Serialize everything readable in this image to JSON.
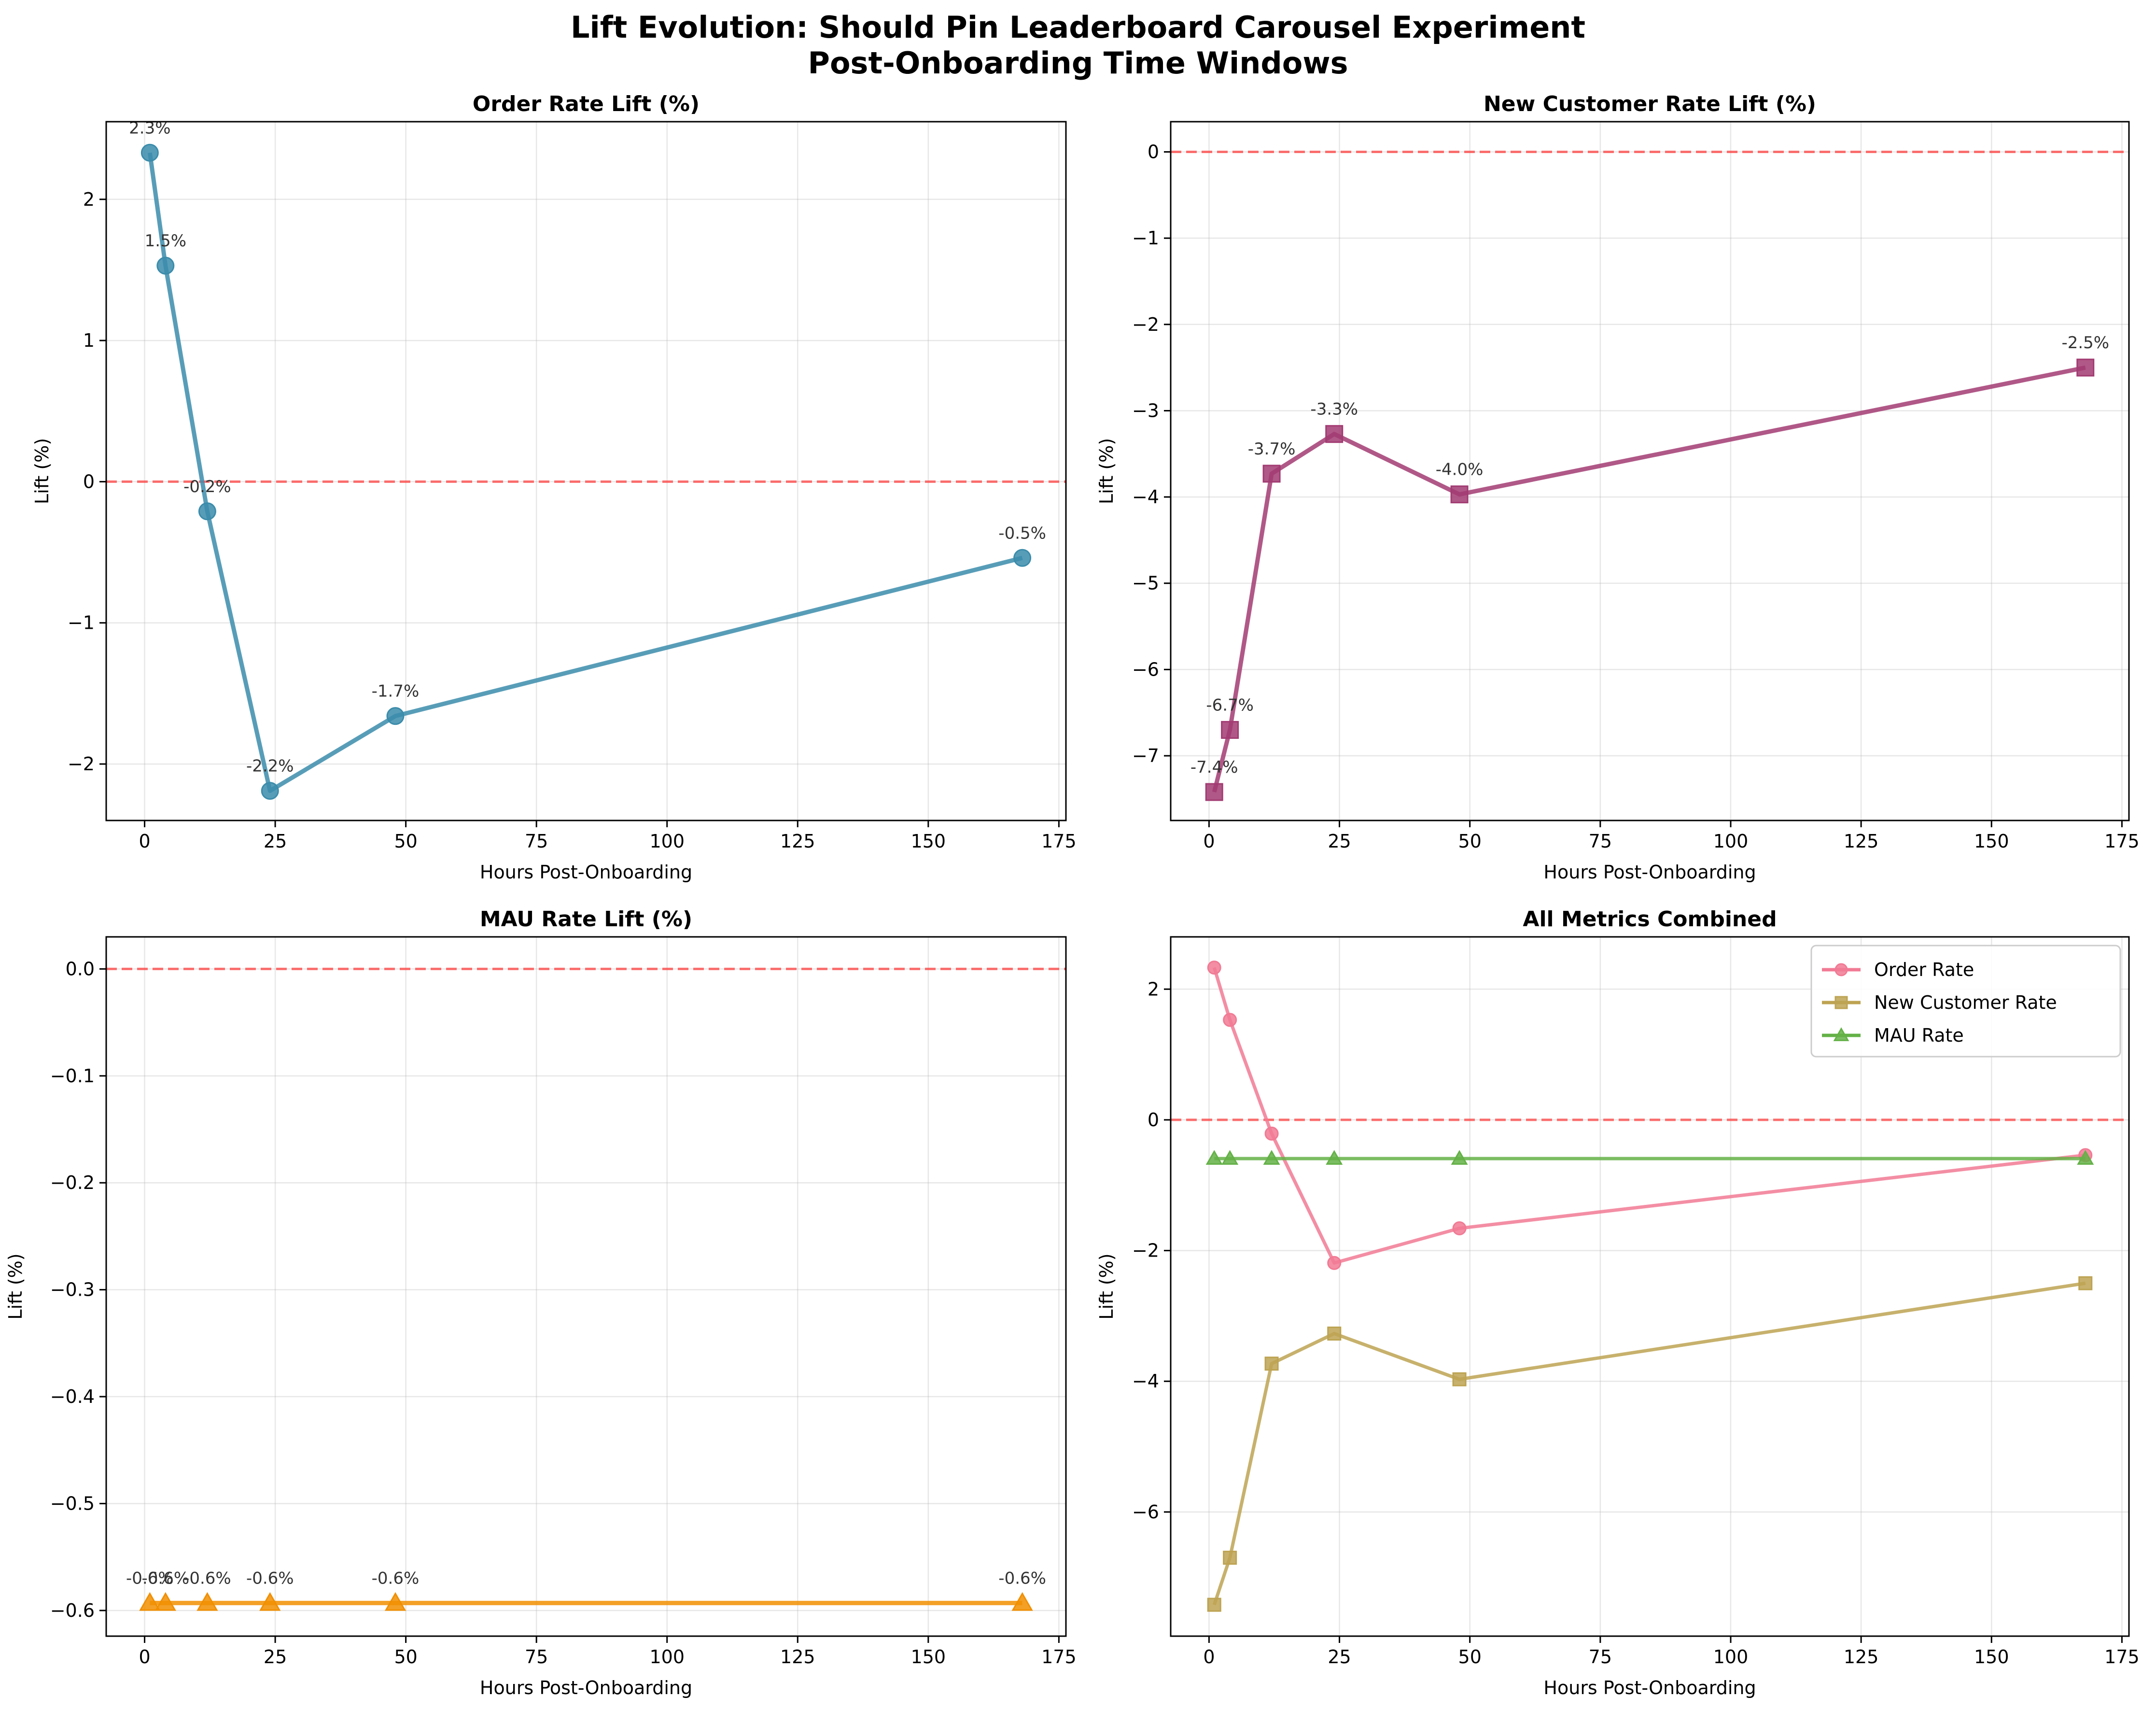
{
  "figure": {
    "title_line1": "Lift Evolution: Should Pin Leaderboard Carousel Experiment",
    "title_line2": "Post-Onboarding Time Windows"
  },
  "chart_data": [
    {
      "type": "line",
      "title": "Order Rate Lift (%)",
      "xlabel": "Hours Post-Onboarding",
      "ylabel": "Lift (%)",
      "xlim": [
        -7.35,
        176.35
      ],
      "ylim": [
        -2.4,
        2.55
      ],
      "xticks": [
        0,
        25,
        50,
        75,
        100,
        125,
        150,
        175
      ],
      "xtick_labels": [
        "0",
        "25",
        "50",
        "75",
        "100",
        "125",
        "150",
        "175"
      ],
      "yticks": [
        -2,
        -1,
        0,
        1,
        2
      ],
      "ytick_labels": [
        "−2",
        "−1",
        "0",
        "1",
        "2"
      ],
      "grid": true,
      "reference_line": 0,
      "reference_color": "#ff4040",
      "series": [
        {
          "color": "#3b8cab",
          "marker": "circle",
          "x": [
            1,
            4,
            12,
            24,
            48,
            168
          ],
          "y": [
            2.33,
            1.53,
            -0.21,
            -2.19,
            -1.66,
            -0.54
          ],
          "labels": [
            "2.3%",
            "1.5%",
            "-0.2%",
            "-2.2%",
            "-1.7%",
            "-0.5%"
          ]
        }
      ]
    },
    {
      "type": "line",
      "title": "New Customer Rate Lift (%)",
      "xlabel": "Hours Post-Onboarding",
      "ylabel": "Lift (%)",
      "xlim": [
        -7.35,
        176.35
      ],
      "ylim": [
        -7.75,
        0.35
      ],
      "xticks": [
        0,
        25,
        50,
        75,
        100,
        125,
        150,
        175
      ],
      "xtick_labels": [
        "0",
        "25",
        "50",
        "75",
        "100",
        "125",
        "150",
        "175"
      ],
      "yticks": [
        -7,
        -6,
        -5,
        -4,
        -3,
        -2,
        -1,
        0
      ],
      "ytick_labels": [
        "−7",
        "−6",
        "−5",
        "−4",
        "−3",
        "−2",
        "−1",
        "0"
      ],
      "grid": true,
      "reference_line": 0,
      "reference_color": "#ff4040",
      "series": [
        {
          "color": "#a23b72",
          "marker": "square",
          "x": [
            1,
            4,
            12,
            24,
            48,
            168
          ],
          "y": [
            -7.42,
            -6.7,
            -3.73,
            -3.27,
            -3.97,
            -2.5
          ],
          "labels": [
            "-7.4%",
            "-6.7%",
            "-3.7%",
            "-3.3%",
            "-4.0%",
            "-2.5%"
          ]
        }
      ]
    },
    {
      "type": "line",
      "title": "MAU Rate Lift (%)",
      "xlabel": "Hours Post-Onboarding",
      "ylabel": "Lift (%)",
      "xlim": [
        -7.35,
        176.35
      ],
      "ylim": [
        -0.624,
        0.03
      ],
      "xticks": [
        0,
        25,
        50,
        75,
        100,
        125,
        150,
        175
      ],
      "xtick_labels": [
        "0",
        "25",
        "50",
        "75",
        "100",
        "125",
        "150",
        "175"
      ],
      "yticks": [
        -0.6,
        -0.5,
        -0.4,
        -0.3,
        -0.2,
        -0.1,
        0.0
      ],
      "ytick_labels": [
        "−0.6",
        "−0.5",
        "−0.4",
        "−0.3",
        "−0.2",
        "−0.1",
        "0.0"
      ],
      "grid": true,
      "reference_line": 0,
      "reference_color": "#ff4040",
      "series": [
        {
          "color": "#f18f01",
          "marker": "triangle",
          "x": [
            1,
            4,
            12,
            24,
            48,
            168
          ],
          "y": [
            -0.593,
            -0.593,
            -0.593,
            -0.593,
            -0.593,
            -0.593
          ],
          "labels": [
            "-0.6%",
            "-0.6%",
            "-0.6%",
            "-0.6%",
            "-0.6%",
            "-0.6%"
          ]
        }
      ]
    },
    {
      "type": "line",
      "title": "All Metrics Combined",
      "xlabel": "Hours Post-Onboarding",
      "ylabel": "Lift (%)",
      "xlim": [
        -7.35,
        176.35
      ],
      "ylim": [
        -7.9,
        2.8
      ],
      "xticks": [
        0,
        25,
        50,
        75,
        100,
        125,
        150,
        175
      ],
      "xtick_labels": [
        "0",
        "25",
        "50",
        "75",
        "100",
        "125",
        "150",
        "175"
      ],
      "yticks": [
        -6,
        -4,
        -2,
        0,
        2
      ],
      "ytick_labels": [
        "−6",
        "−4",
        "−2",
        "0",
        "2"
      ],
      "grid": true,
      "reference_line": 0,
      "reference_color": "#ff4040",
      "legend": "top-right",
      "series": [
        {
          "name": "Order Rate",
          "color": "#f17a94",
          "marker": "circle",
          "x": [
            1,
            4,
            12,
            24,
            48,
            168
          ],
          "y": [
            2.33,
            1.53,
            -0.21,
            -2.19,
            -1.66,
            -0.54
          ]
        },
        {
          "name": "New Customer Rate",
          "color": "#bda352",
          "marker": "square",
          "x": [
            1,
            4,
            12,
            24,
            48,
            168
          ],
          "y": [
            -7.42,
            -6.7,
            -3.73,
            -3.27,
            -3.97,
            -2.5
          ]
        },
        {
          "name": "MAU Rate",
          "color": "#64b147",
          "marker": "triangle",
          "x": [
            1,
            4,
            12,
            24,
            48,
            168
          ],
          "y": [
            -0.593,
            -0.593,
            -0.593,
            -0.593,
            -0.593,
            -0.593
          ]
        }
      ]
    }
  ]
}
